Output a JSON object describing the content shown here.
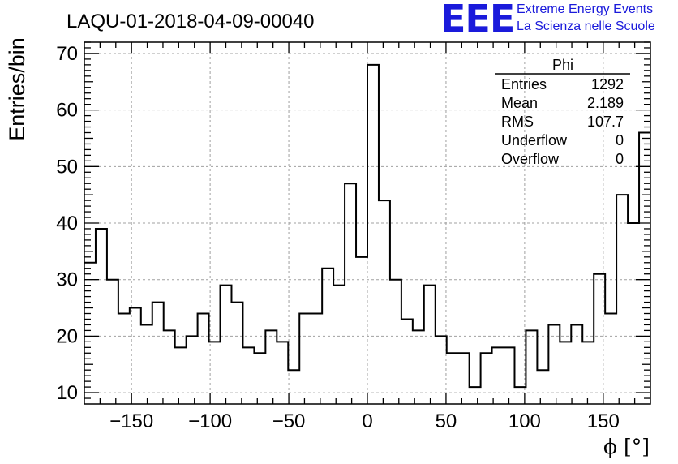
{
  "logo": {
    "text": "EEE",
    "line1": "Extreme Energy Events",
    "line2": "La Scienza nelle Scuole",
    "color": "#1a1adb"
  },
  "chart_data": {
    "type": "histogram",
    "title": "LAQU-01-2018-04-09-00040",
    "xlabel": "ϕ [°]",
    "ylabel": "Entries/bin",
    "xlim": [
      -180,
      180
    ],
    "ylim": [
      8,
      72
    ],
    "grid": true,
    "bin_width": 7.2,
    "x_ticks": [
      -150,
      -100,
      -50,
      0,
      50,
      100,
      150
    ],
    "x_tick_labels": [
      "−150",
      "−100",
      "−50",
      "0",
      "50",
      "100",
      "150"
    ],
    "y_ticks": [
      10,
      20,
      30,
      40,
      50,
      60,
      70
    ],
    "y_tick_labels": [
      "10",
      "20",
      "30",
      "40",
      "50",
      "60",
      "70"
    ],
    "values": [
      33,
      39,
      30,
      24,
      25,
      22,
      26,
      21,
      18,
      20,
      24,
      19,
      29,
      26,
      18,
      17,
      21,
      19,
      14,
      24,
      24,
      32,
      29,
      47,
      34,
      68,
      44,
      30,
      23,
      21,
      29,
      20,
      17,
      17,
      11,
      17,
      18,
      18,
      11,
      21,
      14,
      22,
      19,
      22,
      19,
      31,
      24,
      45,
      40,
      56
    ],
    "line_color": "#000000",
    "stats_box": {
      "title": "Phi",
      "rows": [
        {
          "label": "Entries",
          "value": "1292"
        },
        {
          "label": "Mean",
          "value": "2.189"
        },
        {
          "label": "RMS",
          "value": "107.7"
        },
        {
          "label": "Underflow",
          "value": "0"
        },
        {
          "label": "Overflow",
          "value": "0"
        }
      ],
      "placement": "top-right"
    }
  }
}
